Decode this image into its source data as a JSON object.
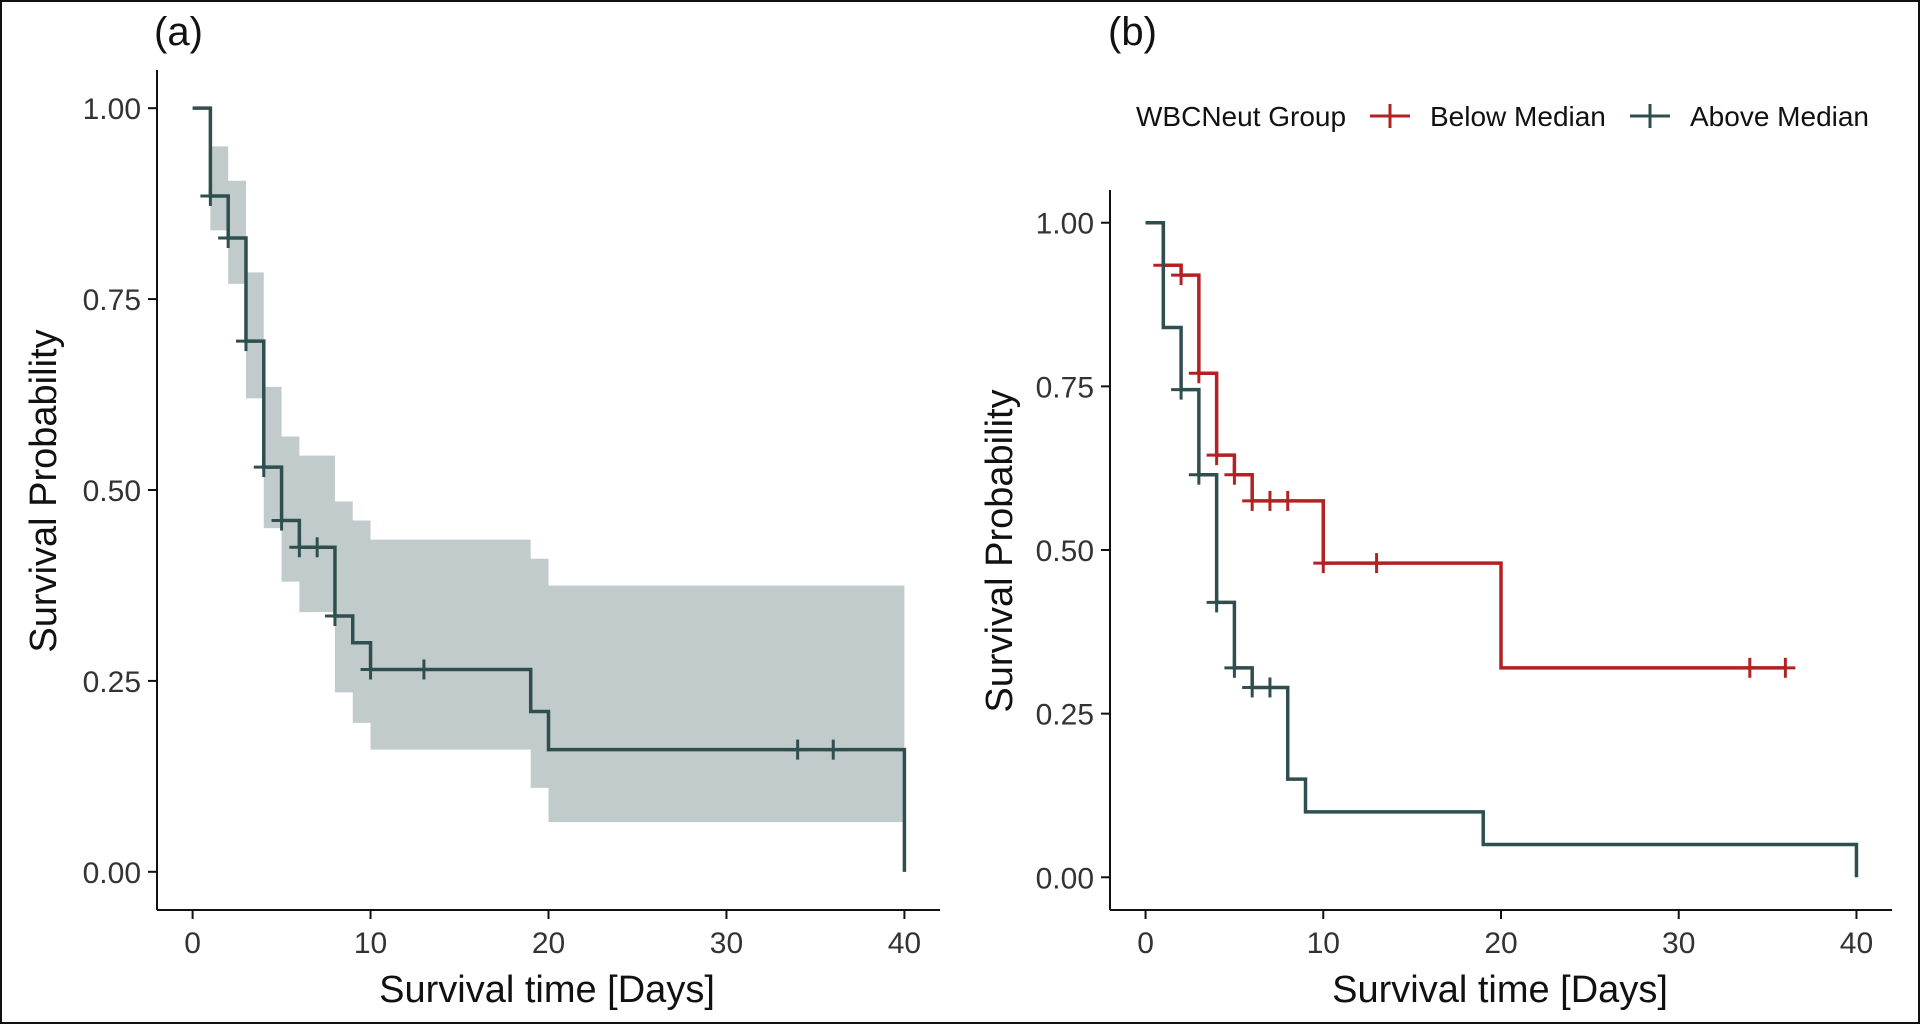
{
  "chart_data": [
    {
      "type": "line",
      "panel_label": "(a)",
      "xlabel": "Survival time [Days]",
      "ylabel": "Survival Probability",
      "xlim": [
        -2,
        42
      ],
      "ylim": [
        -0.05,
        1.05
      ],
      "xticks": [
        0,
        10,
        20,
        30,
        40
      ],
      "xtick_labels": [
        "0",
        "10",
        "20",
        "30",
        "40"
      ],
      "yticks": [
        0,
        0.25,
        0.5,
        0.75,
        1.0
      ],
      "ytick_labels": [
        "0.00",
        "0.25",
        "0.50",
        "0.75",
        "1.00"
      ],
      "grid": false,
      "colors": {
        "line": "#2f4f4f",
        "band": "#c2cbcb"
      },
      "series": [
        {
          "step": [
            [
              0,
              1.0
            ],
            [
              1,
              0.885
            ],
            [
              2,
              0.83
            ],
            [
              3,
              0.695
            ],
            [
              4,
              0.53
            ],
            [
              5,
              0.46
            ],
            [
              6,
              0.425
            ],
            [
              8,
              0.335
            ],
            [
              9,
              0.3
            ],
            [
              10,
              0.265
            ],
            [
              19,
              0.21
            ],
            [
              20,
              0.16
            ],
            [
              40,
              0.0
            ]
          ],
          "band": [
            [
              0,
              1.0,
              1.0
            ],
            [
              1,
              0.95,
              0.84
            ],
            [
              2,
              0.905,
              0.77
            ],
            [
              3,
              0.785,
              0.62
            ],
            [
              4,
              0.635,
              0.45
            ],
            [
              5,
              0.57,
              0.38
            ],
            [
              6,
              0.545,
              0.34
            ],
            [
              8,
              0.485,
              0.235
            ],
            [
              9,
              0.46,
              0.195
            ],
            [
              10,
              0.435,
              0.16
            ],
            [
              19,
              0.41,
              0.11
            ],
            [
              20,
              0.375,
              0.065
            ],
            [
              40,
              0.375,
              0.065
            ]
          ],
          "censored": [
            [
              1,
              0.885
            ],
            [
              2,
              0.83
            ],
            [
              3,
              0.695
            ],
            [
              4,
              0.53
            ],
            [
              5,
              0.46
            ],
            [
              6,
              0.425
            ],
            [
              7,
              0.425
            ],
            [
              8,
              0.335
            ],
            [
              10,
              0.265
            ],
            [
              13,
              0.265
            ],
            [
              34,
              0.16
            ],
            [
              36,
              0.16
            ]
          ]
        }
      ]
    },
    {
      "type": "line",
      "panel_label": "(b)",
      "xlabel": "Survival time [Days]",
      "ylabel": "Survival Probability",
      "xlim": [
        -2,
        42
      ],
      "ylim": [
        -0.05,
        1.05
      ],
      "xticks": [
        0,
        10,
        20,
        30,
        40
      ],
      "xtick_labels": [
        "0",
        "10",
        "20",
        "30",
        "40"
      ],
      "yticks": [
        0,
        0.25,
        0.5,
        0.75,
        1.0
      ],
      "ytick_labels": [
        "0.00",
        "0.25",
        "0.50",
        "0.75",
        "1.00"
      ],
      "grid": false,
      "legend": {
        "title": "WBCNeut Group",
        "position": "top"
      },
      "series": [
        {
          "name": "Below Median",
          "color": "#b22222",
          "step": [
            [
              0,
              1.0
            ],
            [
              1,
              0.935
            ],
            [
              2,
              0.92
            ],
            [
              3,
              0.77
            ],
            [
              4,
              0.645
            ],
            [
              5,
              0.615
            ],
            [
              6,
              0.575
            ],
            [
              10,
              0.48
            ],
            [
              20,
              0.32
            ],
            [
              36,
              0.32
            ]
          ],
          "censored": [
            [
              1,
              0.935
            ],
            [
              2,
              0.92
            ],
            [
              3,
              0.77
            ],
            [
              4,
              0.645
            ],
            [
              5,
              0.615
            ],
            [
              6,
              0.575
            ],
            [
              7,
              0.575
            ],
            [
              8,
              0.575
            ],
            [
              10,
              0.48
            ],
            [
              13,
              0.48
            ],
            [
              34,
              0.32
            ],
            [
              36,
              0.32
            ]
          ]
        },
        {
          "name": "Above Median",
          "color": "#2f4f4f",
          "step": [
            [
              0,
              1.0
            ],
            [
              1,
              0.84
            ],
            [
              2,
              0.745
            ],
            [
              3,
              0.615
            ],
            [
              4,
              0.42
            ],
            [
              5,
              0.32
            ],
            [
              6,
              0.29
            ],
            [
              8,
              0.15
            ],
            [
              9,
              0.1
            ],
            [
              19,
              0.05
            ],
            [
              40,
              0.0
            ]
          ],
          "censored": [
            [
              2,
              0.745
            ],
            [
              3,
              0.615
            ],
            [
              4,
              0.42
            ],
            [
              5,
              0.32
            ],
            [
              6,
              0.29
            ],
            [
              7,
              0.29
            ]
          ]
        }
      ]
    }
  ]
}
